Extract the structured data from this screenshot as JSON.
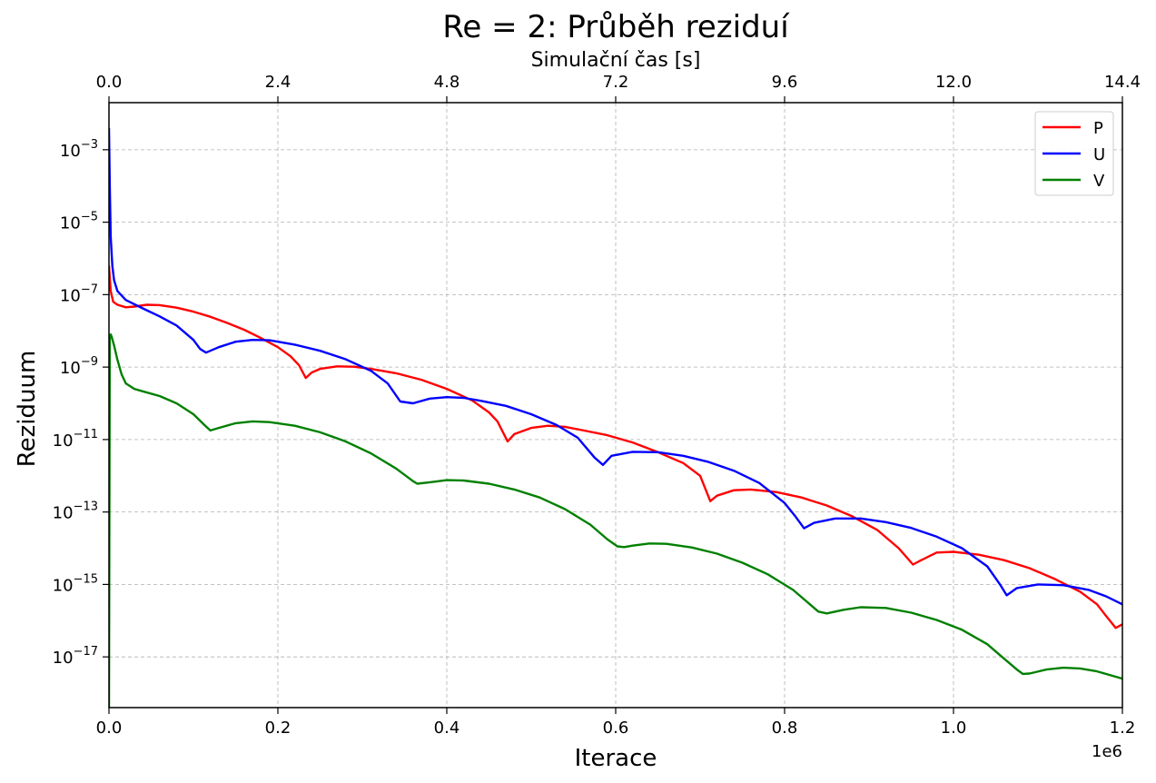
{
  "chart_data": {
    "type": "line",
    "title": "Re = 2: Průběh reziduí",
    "xlabel": "Iterace",
    "ylabel": "Reziduum",
    "secondary_xlabel": "Simulační čas [s]",
    "x_offset_label": "1e6",
    "xlim": [
      0,
      1.2
    ],
    "ylim_log10": [
      -18.4,
      -1.7
    ],
    "yscale": "log",
    "grid": true,
    "legend_position": "top-right",
    "x_ticks": [
      0.0,
      0.2,
      0.4,
      0.6,
      0.8,
      1.0,
      1.2
    ],
    "x_tick_labels": [
      "0.0",
      "0.2",
      "0.4",
      "0.6",
      "0.8",
      "1.0",
      "1.2"
    ],
    "top_x_tick_labels": [
      "0.0",
      "2.4",
      "4.8",
      "7.2",
      "9.6",
      "12.0",
      "14.4"
    ],
    "y_tick_exponents": [
      -3,
      -5,
      -7,
      -9,
      -11,
      -13,
      -15,
      -17
    ],
    "series": [
      {
        "name": "P",
        "color": "#ff0000",
        "x": [
          0.0,
          0.002,
          0.005,
          0.01,
          0.02,
          0.03,
          0.045,
          0.06,
          0.08,
          0.1,
          0.12,
          0.14,
          0.16,
          0.18,
          0.2,
          0.215,
          0.225,
          0.233,
          0.24,
          0.25,
          0.27,
          0.29,
          0.31,
          0.34,
          0.37,
          0.4,
          0.43,
          0.45,
          0.46,
          0.472,
          0.48,
          0.5,
          0.52,
          0.54,
          0.56,
          0.59,
          0.62,
          0.65,
          0.68,
          0.7,
          0.712,
          0.72,
          0.74,
          0.76,
          0.79,
          0.82,
          0.85,
          0.88,
          0.91,
          0.935,
          0.952,
          0.96,
          0.98,
          1.0,
          1.03,
          1.06,
          1.09,
          1.12,
          1.15,
          1.17,
          1.18,
          1.192,
          1.2
        ],
        "y_log10": [
          -6.2,
          -6.9,
          -7.2,
          -7.28,
          -7.35,
          -7.33,
          -7.28,
          -7.29,
          -7.36,
          -7.47,
          -7.61,
          -7.78,
          -7.97,
          -8.2,
          -8.45,
          -8.7,
          -8.95,
          -9.3,
          -9.15,
          -9.05,
          -8.98,
          -8.99,
          -9.05,
          -9.17,
          -9.35,
          -9.6,
          -9.92,
          -10.25,
          -10.5,
          -11.05,
          -10.85,
          -10.68,
          -10.62,
          -10.65,
          -10.74,
          -10.88,
          -11.08,
          -11.35,
          -11.65,
          -12.0,
          -12.7,
          -12.55,
          -12.4,
          -12.38,
          -12.45,
          -12.6,
          -12.82,
          -13.12,
          -13.5,
          -14.0,
          -14.45,
          -14.35,
          -14.12,
          -14.1,
          -14.18,
          -14.33,
          -14.55,
          -14.85,
          -15.2,
          -15.55,
          -15.85,
          -16.2,
          -16.1
        ]
      },
      {
        "name": "U",
        "color": "#0000ff",
        "x": [
          0.0,
          0.001,
          0.002,
          0.004,
          0.006,
          0.01,
          0.02,
          0.04,
          0.06,
          0.08,
          0.1,
          0.108,
          0.115,
          0.13,
          0.15,
          0.17,
          0.19,
          0.22,
          0.25,
          0.28,
          0.31,
          0.33,
          0.345,
          0.36,
          0.38,
          0.4,
          0.42,
          0.44,
          0.47,
          0.5,
          0.53,
          0.555,
          0.575,
          0.585,
          0.595,
          0.62,
          0.65,
          0.68,
          0.71,
          0.74,
          0.77,
          0.8,
          0.812,
          0.823,
          0.835,
          0.86,
          0.89,
          0.92,
          0.95,
          0.98,
          1.01,
          1.04,
          1.055,
          1.063,
          1.075,
          1.1,
          1.13,
          1.16,
          1.18,
          1.2
        ],
        "y_log10": [
          -2.4,
          -4.0,
          -5.4,
          -6.2,
          -6.6,
          -6.9,
          -7.15,
          -7.38,
          -7.6,
          -7.85,
          -8.25,
          -8.5,
          -8.6,
          -8.45,
          -8.3,
          -8.25,
          -8.26,
          -8.38,
          -8.55,
          -8.78,
          -9.1,
          -9.45,
          -9.95,
          -10.0,
          -9.87,
          -9.83,
          -9.85,
          -9.93,
          -10.07,
          -10.3,
          -10.6,
          -10.95,
          -11.5,
          -11.7,
          -11.45,
          -11.34,
          -11.35,
          -11.45,
          -11.62,
          -11.86,
          -12.2,
          -12.75,
          -13.1,
          -13.45,
          -13.3,
          -13.18,
          -13.18,
          -13.28,
          -13.44,
          -13.68,
          -14.0,
          -14.5,
          -15.0,
          -15.3,
          -15.1,
          -15.0,
          -15.02,
          -15.15,
          -15.32,
          -15.55
        ]
      },
      {
        "name": "V",
        "color": "#008000",
        "x": [
          0.0,
          0.001,
          0.002,
          0.003,
          0.006,
          0.01,
          0.015,
          0.02,
          0.03,
          0.04,
          0.06,
          0.08,
          0.1,
          0.113,
          0.12,
          0.13,
          0.15,
          0.17,
          0.19,
          0.22,
          0.25,
          0.28,
          0.31,
          0.34,
          0.36,
          0.365,
          0.38,
          0.4,
          0.42,
          0.45,
          0.48,
          0.51,
          0.54,
          0.57,
          0.59,
          0.602,
          0.61,
          0.62,
          0.64,
          0.66,
          0.69,
          0.72,
          0.75,
          0.78,
          0.81,
          0.83,
          0.84,
          0.85,
          0.87,
          0.89,
          0.92,
          0.95,
          0.98,
          1.01,
          1.04,
          1.06,
          1.075,
          1.082,
          1.09,
          1.11,
          1.13,
          1.15,
          1.17,
          1.2
        ],
        "y_log10": [
          -18.4,
          -8.2,
          -8.1,
          -8.15,
          -8.4,
          -8.8,
          -9.2,
          -9.45,
          -9.6,
          -9.67,
          -9.8,
          -10.0,
          -10.3,
          -10.6,
          -10.75,
          -10.68,
          -10.55,
          -10.5,
          -10.52,
          -10.62,
          -10.8,
          -11.05,
          -11.38,
          -11.8,
          -12.15,
          -12.22,
          -12.18,
          -12.12,
          -12.13,
          -12.22,
          -12.38,
          -12.6,
          -12.92,
          -13.35,
          -13.75,
          -13.95,
          -13.97,
          -13.93,
          -13.87,
          -13.88,
          -13.98,
          -14.15,
          -14.4,
          -14.72,
          -15.15,
          -15.55,
          -15.75,
          -15.8,
          -15.7,
          -15.63,
          -15.65,
          -15.78,
          -15.98,
          -16.25,
          -16.65,
          -17.05,
          -17.35,
          -17.47,
          -17.46,
          -17.35,
          -17.3,
          -17.32,
          -17.4,
          -17.6
        ]
      }
    ]
  }
}
